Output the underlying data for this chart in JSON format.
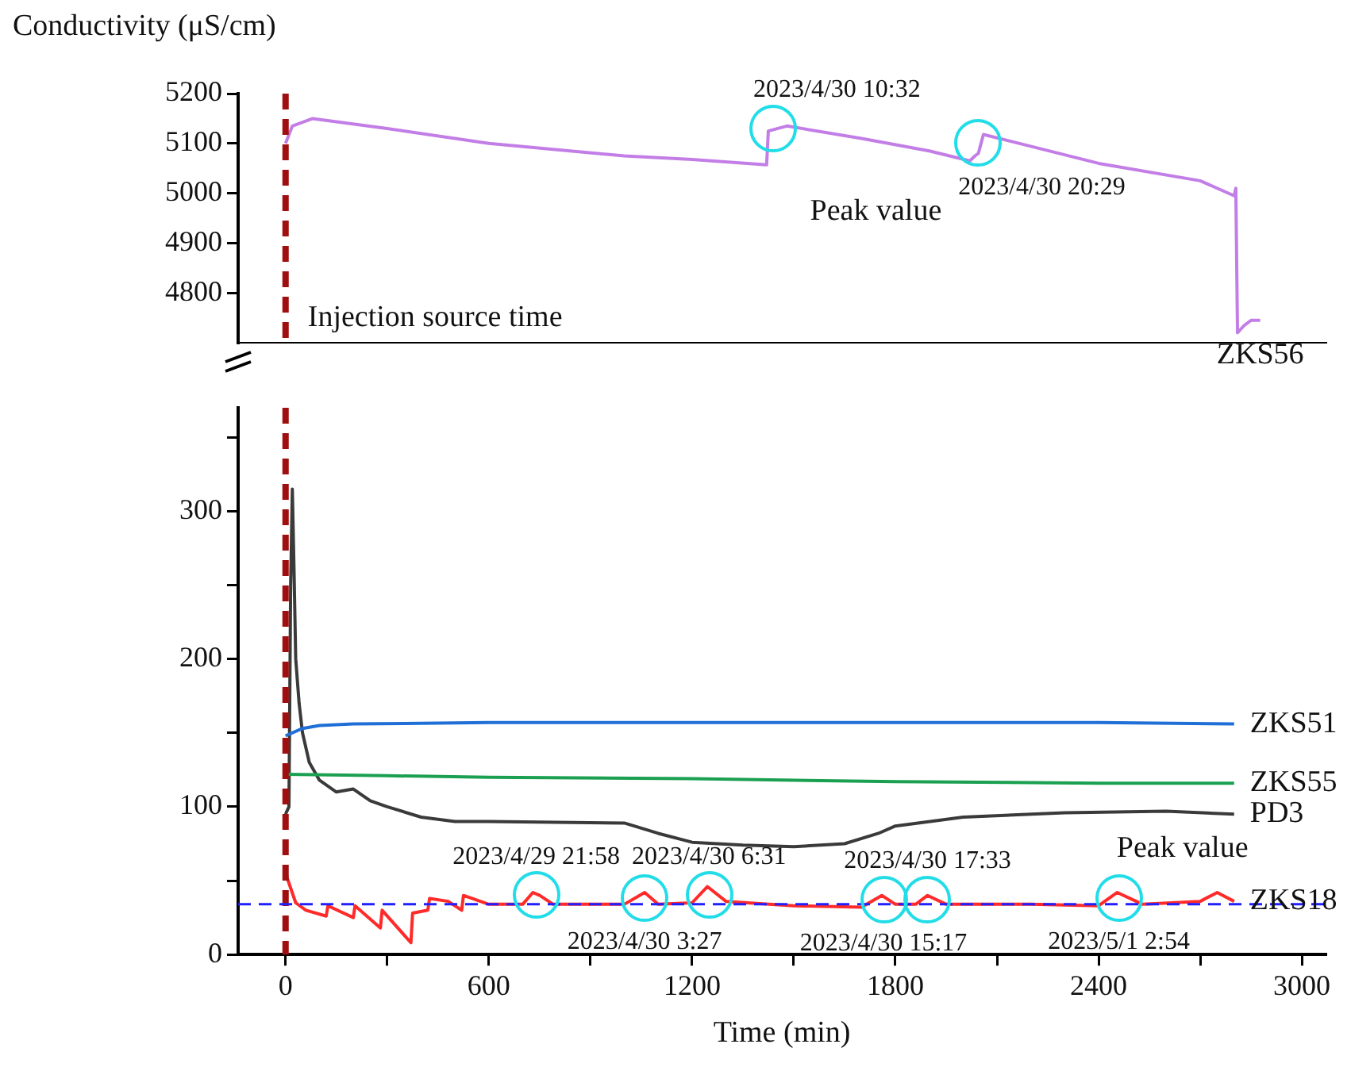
{
  "chart_data": [
    {
      "type": "line",
      "ylabel": "Conductivity (μS/cm)",
      "xlim": [
        -140,
        3070
      ],
      "ylim": [
        4700,
        5200
      ],
      "yticks": [
        4800,
        4900,
        5000,
        5100,
        5200
      ],
      "tick_labels": "y",
      "grid": false,
      "legend": false,
      "marker": "none",
      "line_style": "solid",
      "series": [
        {
          "name": "ZKS56",
          "color": "#c27ee6",
          "x": [
            0,
            20,
            80,
            300,
            600,
            1000,
            1200,
            1420,
            1425,
            1480,
            1700,
            1900,
            2020,
            2035,
            2045,
            2060,
            2400,
            2700,
            2800,
            2805,
            2810,
            2830,
            2850,
            2877
          ],
          "values": [
            5100,
            5135,
            5150,
            5130,
            5100,
            5075,
            5068,
            5057,
            5125,
            5135,
            5110,
            5085,
            5065,
            5075,
            5080,
            5118,
            5060,
            5025,
            4995,
            5010,
            4720,
            4735,
            4745,
            4745
          ]
        }
      ],
      "ref_lines": [
        {
          "axis": "x",
          "value": 0,
          "label": "Injection source time",
          "color": "#a00f0f",
          "line_style": "dashed"
        }
      ],
      "annotations": [
        {
          "text": "2023/4/30 10:32",
          "x": 1440,
          "y": 5130
        },
        {
          "text": "2023/4/30 20:29",
          "x": 2045,
          "y": 5100
        },
        "Peak value"
      ]
    },
    {
      "type": "line",
      "xlabel": "Time (min)",
      "xlim": [
        -140,
        3070
      ],
      "ylim": [
        0,
        370
      ],
      "xticks": [
        0,
        {
          "value": 300,
          "label": null
        },
        600,
        {
          "value": 900,
          "label": null
        },
        1200,
        {
          "value": 1500,
          "label": null
        },
        1800,
        {
          "value": 2100,
          "label": null
        },
        2400,
        {
          "value": 2700,
          "label": null
        },
        3000
      ],
      "yticks": [
        0,
        {
          "value": 50,
          "label": null
        },
        100,
        {
          "value": 150,
          "label": null
        },
        200,
        {
          "value": 250,
          "label": null
        },
        300,
        {
          "value": 350,
          "label": null
        }
      ],
      "grid": false,
      "legend": false,
      "marker": "none",
      "line_style": "solid",
      "series": [
        {
          "name": "ZKS51",
          "color": "#1f6fd6",
          "x": [
            0,
            50,
            100,
            200,
            600,
            1200,
            1800,
            2400,
            2800
          ],
          "values": [
            148,
            153,
            155,
            156,
            157,
            157,
            157,
            157,
            156
          ]
        },
        {
          "name": "ZKS55",
          "color": "#1aa050",
          "x": [
            0,
            300,
            600,
            1200,
            1800,
            2400,
            2800
          ],
          "values": [
            122,
            121,
            120,
            119,
            117,
            116,
            116
          ]
        },
        {
          "name": "PD3",
          "color": "#3a3a3a",
          "x": [
            0,
            10,
            15,
            20,
            25,
            30,
            40,
            50,
            70,
            100,
            150,
            200,
            250,
            300,
            400,
            500,
            600,
            1000,
            1100,
            1200,
            1350,
            1500,
            1650,
            1750,
            1800,
            2000,
            2300,
            2600,
            2800
          ],
          "values": [
            95,
            100,
            250,
            315,
            260,
            200,
            170,
            150,
            130,
            118,
            110,
            112,
            104,
            100,
            93,
            90,
            90,
            89,
            82,
            76,
            74,
            73,
            75,
            82,
            87,
            93,
            96,
            97,
            95
          ]
        },
        {
          "name": "ZKS18",
          "color": "#ff2a2a",
          "x": [
            0,
            30,
            60,
            120,
            125,
            200,
            205,
            280,
            285,
            370,
            375,
            420,
            425,
            480,
            520,
            525,
            600,
            700,
            730,
            750,
            790,
            1000,
            1060,
            1100,
            1200,
            1245,
            1300,
            1500,
            1700,
            1760,
            1800,
            1860,
            1895,
            1950,
            2200,
            2400,
            2455,
            2530,
            2700,
            2750,
            2800
          ],
          "values": [
            55,
            35,
            30,
            26,
            33,
            25,
            33,
            18,
            30,
            8,
            28,
            30,
            38,
            36,
            30,
            40,
            34,
            34,
            42,
            40,
            34,
            34,
            42,
            34,
            35,
            46,
            36,
            33,
            32,
            40,
            34,
            34,
            40,
            34,
            34,
            33,
            42,
            34,
            36,
            42,
            36
          ]
        }
      ],
      "ref_lines": [
        {
          "axis": "x",
          "value": 0,
          "color": "#a00f0f",
          "line_style": "dashed"
        },
        {
          "axis": "y",
          "value": 34,
          "color": "#2020ff",
          "line_style": "dashed"
        }
      ],
      "annotations": [
        {
          "text": "2023/4/29 21:58",
          "x": 740,
          "y": 40
        },
        {
          "text": "2023/4/30 3:27",
          "x": 1060,
          "y": 38
        },
        {
          "text": "2023/4/30 6:31",
          "x": 1250,
          "y": 40
        },
        {
          "text": "2023/4/30 15:17",
          "x": 1765,
          "y": 37
        },
        {
          "text": "2023/4/30 17:33",
          "x": 1895,
          "y": 37
        },
        {
          "text": "2023/5/1 2:54",
          "x": 2460,
          "y": 38
        },
        "Peak value"
      ]
    }
  ]
}
